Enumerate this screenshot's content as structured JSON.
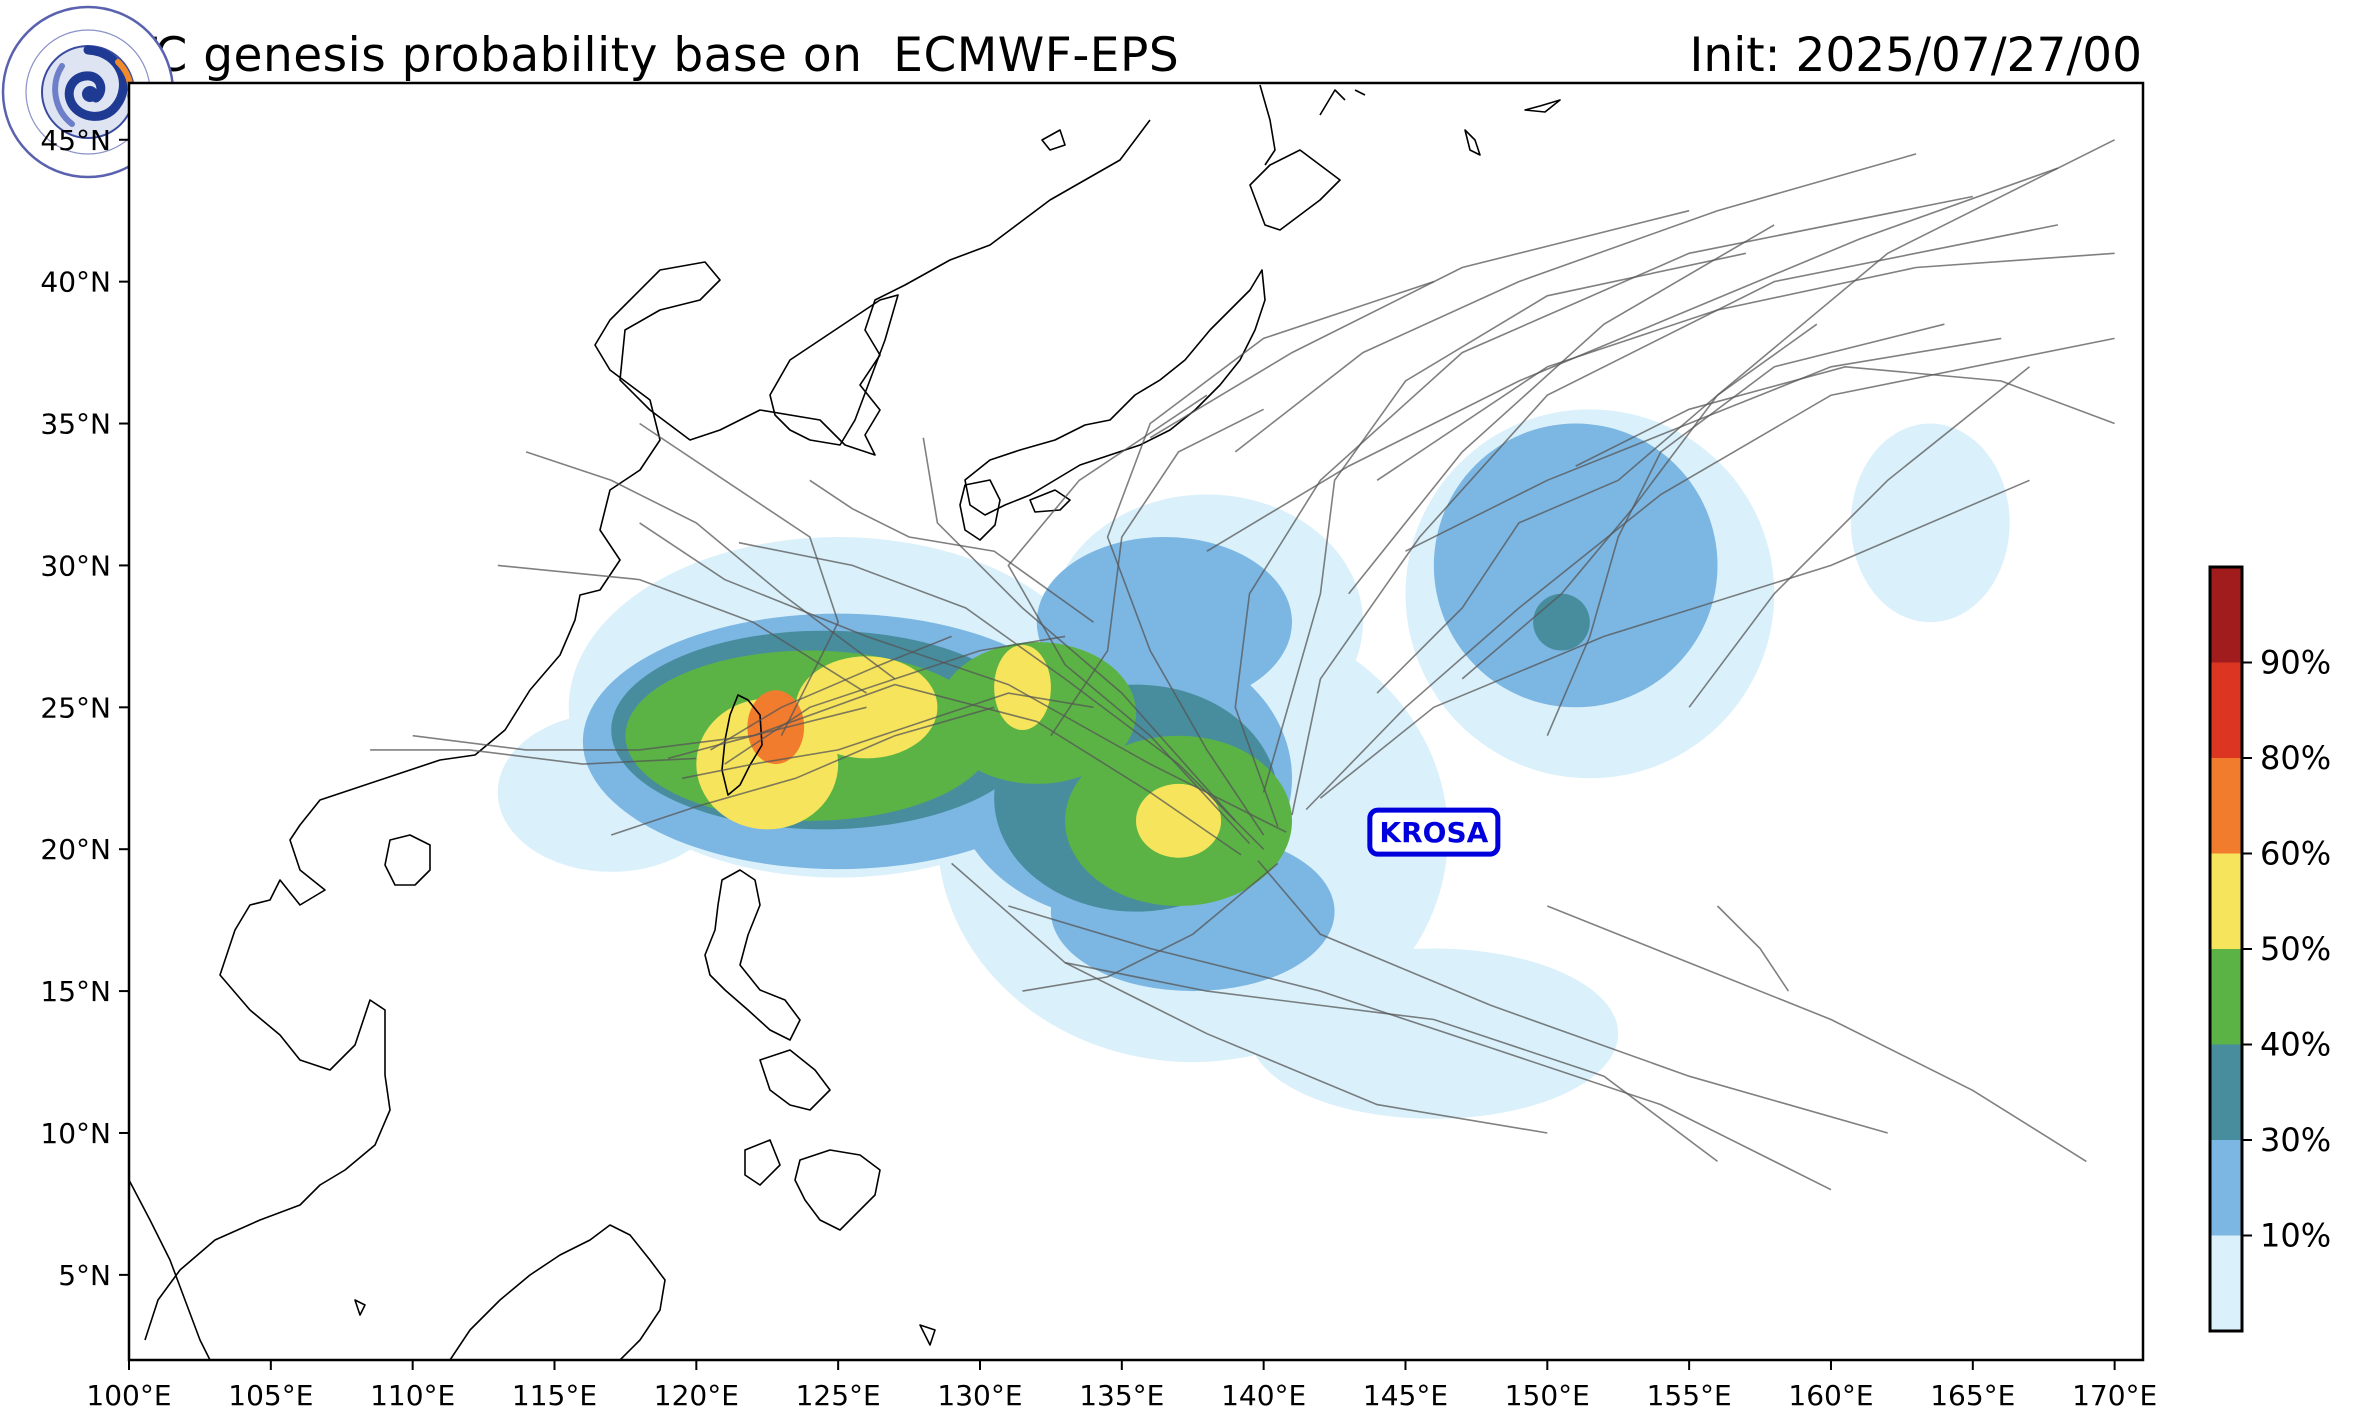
{
  "title": "TC genesis probability base on  ECMWF-EPS",
  "init": "Init: 2025/07/27/00",
  "logo": {
    "text": "中国气象局上海台风研究所 · Shanghai Typhoon Institute-CMA"
  },
  "map": {
    "lon_range": [
      100,
      171
    ],
    "lat_range": [
      2,
      47
    ],
    "lon_ticks": [
      {
        "lon": 100,
        "label": "100°E"
      },
      {
        "lon": 105,
        "label": "105°E"
      },
      {
        "lon": 110,
        "label": "110°E"
      },
      {
        "lon": 115,
        "label": "115°E"
      },
      {
        "lon": 120,
        "label": "120°E"
      },
      {
        "lon": 125,
        "label": "125°E"
      },
      {
        "lon": 130,
        "label": "130°E"
      },
      {
        "lon": 135,
        "label": "135°E"
      },
      {
        "lon": 140,
        "label": "140°E"
      },
      {
        "lon": 145,
        "label": "145°E"
      },
      {
        "lon": 150,
        "label": "150°E"
      },
      {
        "lon": 155,
        "label": "155°E"
      },
      {
        "lon": 160,
        "label": "160°E"
      },
      {
        "lon": 165,
        "label": "165°E"
      },
      {
        "lon": 170,
        "label": "170°E"
      }
    ],
    "lat_ticks": [
      {
        "lat": 5,
        "label": "5°N"
      },
      {
        "lat": 10,
        "label": "10°N"
      },
      {
        "lat": 15,
        "label": "15°N"
      },
      {
        "lat": 20,
        "label": "20°N"
      },
      {
        "lat": 25,
        "label": "25°N"
      },
      {
        "lat": 30,
        "label": "30°N"
      },
      {
        "lat": 35,
        "label": "35°N"
      },
      {
        "lat": 40,
        "label": "40°N"
      },
      {
        "lat": 45,
        "label": "45°N"
      }
    ],
    "storm_label": {
      "text": "KROSA",
      "lon": 146.0,
      "lat": 20.6,
      "color": "#0000dd"
    }
  },
  "colorbar": {
    "colors": [
      "#daf0fa",
      "#7cb6e2",
      "#478d9e",
      "#5bb345",
      "#f6e45c",
      "#f17c2e",
      "#dc3623",
      "#a11d1d"
    ],
    "labels": [
      "10%",
      "30%",
      "40%",
      "50%",
      "60%",
      "80%",
      "90%"
    ]
  },
  "probability_areas": [
    {
      "level": 1,
      "lon": 117.0,
      "lat": 22.0,
      "rx": 4.0,
      "ry": 2.8
    },
    {
      "level": 1,
      "lon": 125.0,
      "lat": 25.0,
      "rx": 9.5,
      "ry": 6.0
    },
    {
      "level": 1,
      "lon": 137.5,
      "lat": 20.5,
      "rx": 9.0,
      "ry": 8.0
    },
    {
      "level": 1,
      "lon": 138.0,
      "lat": 28.0,
      "rx": 5.5,
      "ry": 4.5
    },
    {
      "level": 1,
      "lon": 146.0,
      "lat": 13.5,
      "rx": 6.5,
      "ry": 3.0
    },
    {
      "level": 1,
      "lon": 151.5,
      "lat": 29.0,
      "rx": 6.5,
      "ry": 6.5
    },
    {
      "level": 1,
      "lon": 163.5,
      "lat": 31.5,
      "rx": 2.8,
      "ry": 3.5
    },
    {
      "level": 2,
      "lon": 125.0,
      "lat": 23.8,
      "rx": 9.0,
      "ry": 4.5
    },
    {
      "level": 2,
      "lon": 135.0,
      "lat": 22.5,
      "rx": 6.0,
      "ry": 5.0
    },
    {
      "level": 2,
      "lon": 137.5,
      "lat": 17.8,
      "rx": 5.0,
      "ry": 2.8
    },
    {
      "level": 2,
      "lon": 136.5,
      "lat": 28.0,
      "rx": 4.5,
      "ry": 3.0
    },
    {
      "level": 2,
      "lon": 151.0,
      "lat": 30.0,
      "rx": 5.0,
      "ry": 5.0
    },
    {
      "level": 3,
      "lon": 124.5,
      "lat": 24.2,
      "rx": 7.5,
      "ry": 3.5
    },
    {
      "level": 3,
      "lon": 135.5,
      "lat": 21.8,
      "rx": 5.0,
      "ry": 4.0
    },
    {
      "level": 3,
      "lon": 150.5,
      "lat": 28.0,
      "rx": 1.0,
      "ry": 1.0
    },
    {
      "level": 4,
      "lon": 124.0,
      "lat": 24.0,
      "rx": 6.5,
      "ry": 3.0
    },
    {
      "level": 4,
      "lon": 132.0,
      "lat": 24.8,
      "rx": 3.5,
      "ry": 2.5
    },
    {
      "level": 4,
      "lon": 137.0,
      "lat": 21.0,
      "rx": 4.0,
      "ry": 3.0
    },
    {
      "level": 5,
      "lon": 122.5,
      "lat": 23.0,
      "rx": 2.5,
      "ry": 2.3
    },
    {
      "level": 5,
      "lon": 126.0,
      "lat": 25.0,
      "rx": 2.5,
      "ry": 1.8
    },
    {
      "level": 5,
      "lon": 131.5,
      "lat": 25.7,
      "rx": 1.0,
      "ry": 1.5
    },
    {
      "level": 5,
      "lon": 137.0,
      "lat": 21.0,
      "rx": 1.5,
      "ry": 1.3
    },
    {
      "level": 6,
      "lon": 122.8,
      "lat": 24.3,
      "rx": 1.0,
      "ry": 1.3
    }
  ],
  "ensemble_tracks": [
    [
      [
        139.2,
        19.8
      ],
      [
        136.0,
        22.0
      ],
      [
        132.0,
        24.5
      ],
      [
        127.0,
        25.8
      ],
      [
        122.0,
        24.0
      ],
      [
        119.0,
        23.2
      ]
    ],
    [
      [
        140.8,
        20.6
      ],
      [
        136.0,
        23.0
      ],
      [
        131.0,
        25.8
      ],
      [
        126.0,
        27.5
      ],
      [
        121.0,
        29.5
      ],
      [
        118.0,
        31.5
      ]
    ],
    [
      [
        139.5,
        20.2
      ],
      [
        136.0,
        24.0
      ],
      [
        133.0,
        26.5
      ],
      [
        131.0,
        30.0
      ],
      [
        133.5,
        33.0
      ],
      [
        138.0,
        36.0
      ]
    ],
    [
      [
        140.5,
        20.8
      ],
      [
        139.0,
        25.0
      ],
      [
        139.5,
        29.0
      ],
      [
        142.0,
        33.0
      ],
      [
        147.0,
        37.5
      ],
      [
        155.0,
        41.0
      ],
      [
        165.0,
        43.0
      ]
    ],
    [
      [
        141.0,
        21.2
      ],
      [
        142.0,
        26.0
      ],
      [
        145.5,
        31.0
      ],
      [
        150.0,
        36.0
      ],
      [
        158.0,
        40.0
      ],
      [
        168.0,
        42.0
      ]
    ],
    [
      [
        140.0,
        20.0
      ],
      [
        137.0,
        23.0
      ],
      [
        133.0,
        26.0
      ],
      [
        129.5,
        28.5
      ],
      [
        125.5,
        30.0
      ],
      [
        121.5,
        30.8
      ]
    ],
    [
      [
        141.5,
        21.4
      ],
      [
        145.0,
        25.0
      ],
      [
        149.0,
        28.5
      ],
      [
        154.0,
        32.5
      ],
      [
        160.0,
        36.0
      ],
      [
        170.0,
        38.0
      ]
    ],
    [
      [
        140.5,
        19.5
      ],
      [
        137.5,
        17.0
      ],
      [
        134.5,
        15.5
      ],
      [
        131.5,
        15.0
      ]
    ],
    [
      [
        139.0,
        21.0
      ],
      [
        135.0,
        25.5
      ],
      [
        131.5,
        28.5
      ],
      [
        128.5,
        31.5
      ],
      [
        128.0,
        34.5
      ]
    ],
    [
      [
        140.0,
        20.5
      ],
      [
        138.0,
        23.5
      ],
      [
        136.0,
        27.0
      ],
      [
        134.5,
        31.0
      ],
      [
        136.0,
        35.0
      ],
      [
        140.0,
        38.0
      ],
      [
        146.0,
        40.0
      ]
    ],
    [
      [
        142.0,
        21.8
      ],
      [
        146.0,
        25.0
      ],
      [
        152.0,
        27.5
      ],
      [
        160.0,
        30.0
      ],
      [
        167.0,
        33.0
      ]
    ],
    [
      [
        139.8,
        19.6
      ],
      [
        142.0,
        17.0
      ],
      [
        148.0,
        14.5
      ],
      [
        155.0,
        12.0
      ],
      [
        162.0,
        10.0
      ]
    ],
    [
      [
        131.0,
        18.0
      ],
      [
        136.0,
        16.5
      ],
      [
        142.0,
        15.0
      ],
      [
        148.0,
        13.0
      ],
      [
        154.0,
        11.0
      ],
      [
        160.0,
        8.0
      ]
    ],
    [
      [
        133.0,
        16.0
      ],
      [
        138.0,
        15.0
      ],
      [
        146.0,
        14.0
      ],
      [
        152.0,
        12.0
      ],
      [
        156.0,
        9.0
      ]
    ],
    [
      [
        129.0,
        19.5
      ],
      [
        133.0,
        16.0
      ],
      [
        138.0,
        13.5
      ],
      [
        144.0,
        11.0
      ],
      [
        150.0,
        10.0
      ]
    ],
    [
      [
        121.0,
        23.0
      ],
      [
        124.0,
        25.0
      ],
      [
        127.0,
        26.0
      ],
      [
        130.0,
        27.0
      ],
      [
        133.0,
        27.5
      ]
    ],
    [
      [
        120.5,
        23.5
      ],
      [
        123.0,
        25.0
      ],
      [
        126.5,
        26.5
      ],
      [
        129.0,
        27.5
      ]
    ],
    [
      [
        119.5,
        22.5
      ],
      [
        122.0,
        23.0
      ],
      [
        125.0,
        23.5
      ],
      [
        128.0,
        24.5
      ],
      [
        131.0,
        25.5
      ],
      [
        134.0,
        25.0
      ]
    ],
    [
      [
        123.0,
        24.0
      ],
      [
        125.0,
        28.0
      ],
      [
        124.0,
        31.0
      ],
      [
        121.0,
        33.0
      ],
      [
        118.0,
        35.0
      ]
    ],
    [
      [
        127.0,
        26.0
      ],
      [
        123.0,
        29.0
      ],
      [
        120.0,
        31.5
      ],
      [
        117.0,
        33.0
      ],
      [
        114.0,
        34.0
      ]
    ],
    [
      [
        126.0,
        25.5
      ],
      [
        122.0,
        28.0
      ],
      [
        118.0,
        29.5
      ],
      [
        113.0,
        30.0
      ]
    ],
    [
      [
        110.0,
        24.0
      ],
      [
        114.0,
        23.5
      ],
      [
        118.0,
        23.5
      ],
      [
        122.0,
        24.0
      ],
      [
        126.0,
        25.0
      ]
    ],
    [
      [
        108.5,
        23.5
      ],
      [
        112.0,
        23.5
      ],
      [
        116.0,
        23.0
      ],
      [
        120.0,
        23.2
      ]
    ],
    [
      [
        117.0,
        20.5
      ],
      [
        120.0,
        21.5
      ],
      [
        123.5,
        22.5
      ],
      [
        127.0,
        24.0
      ],
      [
        130.5,
        25.0
      ]
    ],
    [
      [
        134.0,
        28.0
      ],
      [
        130.5,
        30.5
      ],
      [
        127.5,
        31.0
      ],
      [
        125.5,
        32.0
      ],
      [
        124.0,
        33.0
      ]
    ],
    [
      [
        147.0,
        26.0
      ],
      [
        150.5,
        29.0
      ],
      [
        153.0,
        32.0
      ],
      [
        156.0,
        36.0
      ],
      [
        162.0,
        41.0
      ],
      [
        170.0,
        45.0
      ]
    ],
    [
      [
        150.0,
        24.0
      ],
      [
        151.5,
        27.5
      ],
      [
        152.5,
        31.0
      ],
      [
        154.0,
        34.0
      ],
      [
        158.0,
        37.0
      ],
      [
        164.0,
        38.5
      ]
    ],
    [
      [
        155.0,
        25.0
      ],
      [
        158.0,
        29.0
      ],
      [
        162.0,
        33.0
      ],
      [
        167.0,
        37.0
      ]
    ],
    [
      [
        145.0,
        30.5
      ],
      [
        150.0,
        33.0
      ],
      [
        155.0,
        35.0
      ],
      [
        160.0,
        37.0
      ],
      [
        166.0,
        38.0
      ]
    ],
    [
      [
        144.0,
        33.0
      ],
      [
        150.0,
        37.0
      ],
      [
        156.0,
        39.0
      ],
      [
        163.0,
        40.5
      ],
      [
        170.0,
        41.0
      ]
    ],
    [
      [
        143.0,
        29.0
      ],
      [
        147.0,
        34.0
      ],
      [
        152.0,
        38.5
      ],
      [
        158.0,
        42.0
      ]
    ],
    [
      [
        138.0,
        30.5
      ],
      [
        143.0,
        33.5
      ],
      [
        149.0,
        36.5
      ],
      [
        155.0,
        39.0
      ],
      [
        161.0,
        41.5
      ],
      [
        168.0,
        44.0
      ]
    ],
    [
      [
        139.0,
        34.0
      ],
      [
        143.5,
        37.5
      ],
      [
        149.0,
        40.0
      ],
      [
        156.0,
        42.5
      ],
      [
        163.0,
        44.5
      ]
    ],
    [
      [
        136.0,
        34.5
      ],
      [
        141.0,
        37.5
      ],
      [
        147.0,
        40.5
      ],
      [
        155.0,
        42.5
      ]
    ],
    [
      [
        144.0,
        25.5
      ],
      [
        147.0,
        28.5
      ],
      [
        149.0,
        31.5
      ],
      [
        152.5,
        33.0
      ],
      [
        156.0,
        36.0
      ],
      [
        159.5,
        38.5
      ]
    ],
    [
      [
        150.0,
        18.0
      ],
      [
        155.0,
        16.0
      ],
      [
        160.0,
        14.0
      ],
      [
        165.0,
        11.5
      ],
      [
        169.0,
        9.0
      ]
    ],
    [
      [
        156.0,
        18.0
      ],
      [
        157.5,
        16.5
      ],
      [
        158.5,
        15.0
      ]
    ],
    [
      [
        151.0,
        33.5
      ],
      [
        155.0,
        35.5
      ],
      [
        160.5,
        37.0
      ],
      [
        166.0,
        36.5
      ],
      [
        170.0,
        35.0
      ]
    ],
    [
      [
        140.0,
        22.0
      ],
      [
        141.0,
        25.5
      ],
      [
        142.0,
        29.0
      ],
      [
        142.5,
        33.0
      ],
      [
        145.0,
        36.5
      ],
      [
        150.0,
        39.5
      ],
      [
        157.0,
        41.0
      ]
    ],
    [
      [
        132.5,
        24.0
      ],
      [
        134.5,
        27.0
      ],
      [
        135.0,
        31.0
      ],
      [
        137.0,
        34.0
      ],
      [
        140.0,
        35.5
      ]
    ]
  ]
}
